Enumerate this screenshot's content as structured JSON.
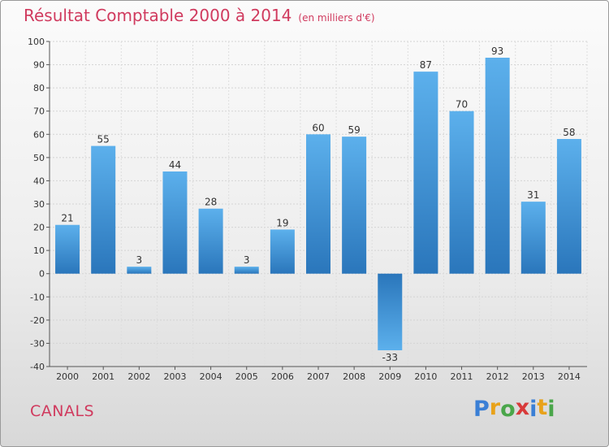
{
  "header": {
    "title": "Résultat Comptable 2000 à 2014",
    "subtitle": "(en milliers d'€)"
  },
  "footer": {
    "town": "CANALS",
    "logo_letters": [
      "P",
      "r",
      "o",
      "x",
      "i",
      "t",
      "i"
    ],
    "logo_colors": [
      "#3a7fd5",
      "#e8a21a",
      "#4aa64a",
      "#d83a3a",
      "#3a7fd5",
      "#e8a21a",
      "#4aa64a"
    ]
  },
  "chart_data": {
    "type": "bar",
    "title": "Résultat Comptable 2000 à 2014",
    "subtitle": "(en milliers d'€)",
    "xlabel": "",
    "ylabel": "",
    "categories": [
      "2000",
      "2001",
      "2002",
      "2003",
      "2004",
      "2005",
      "2006",
      "2007",
      "2008",
      "2009",
      "2010",
      "2011",
      "2012",
      "2013",
      "2014"
    ],
    "values": [
      21,
      55,
      3,
      44,
      28,
      3,
      19,
      60,
      59,
      -33,
      87,
      70,
      93,
      31,
      58
    ],
    "ylim": [
      -40,
      100
    ],
    "yticks": [
      -40,
      -30,
      -20,
      -10,
      0,
      10,
      20,
      30,
      40,
      50,
      60,
      70,
      80,
      90,
      100
    ],
    "grid": true,
    "bar_color_top": "#5aaeea",
    "bar_color_bottom": "#2a77bd"
  }
}
